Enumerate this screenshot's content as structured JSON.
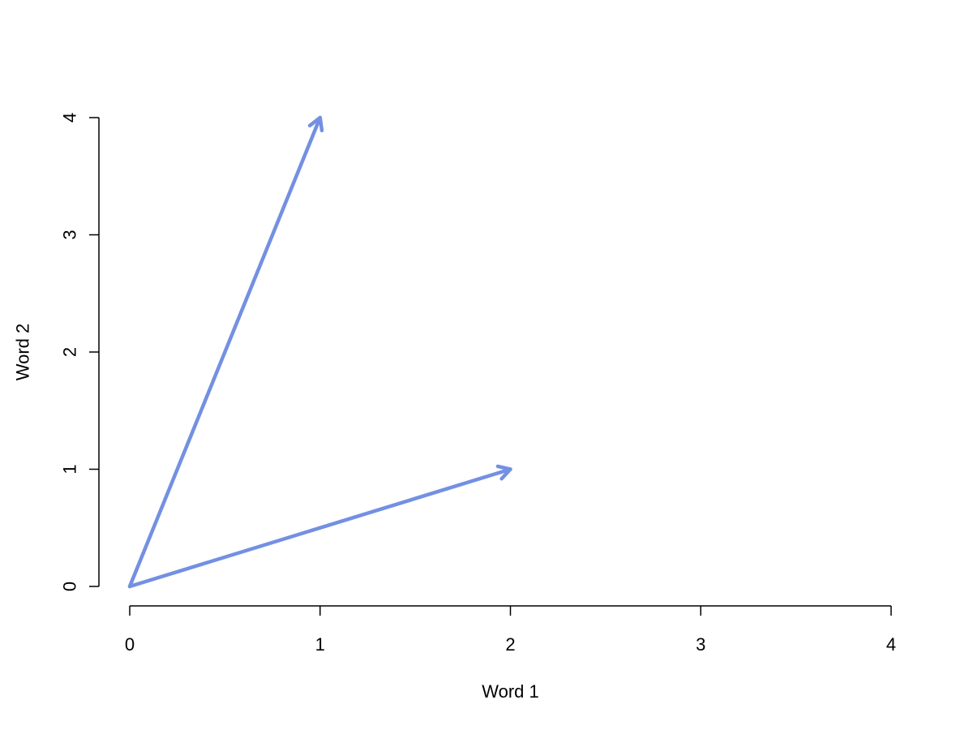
{
  "chart_data": {
    "type": "line",
    "subtype": "vector-arrows",
    "title": "",
    "xlabel": "Word 1",
    "ylabel": "Word 2",
    "xlim": [
      0,
      4
    ],
    "ylim": [
      0,
      4
    ],
    "x_ticks": [
      "0",
      "1",
      "2",
      "3",
      "4"
    ],
    "y_ticks": [
      "0",
      "1",
      "2",
      "3",
      "4"
    ],
    "grid": false,
    "legend": "none",
    "arrow_color": "#7390E2",
    "vectors": [
      {
        "x0": 0,
        "y0": 0,
        "x1": 1,
        "y1": 4
      },
      {
        "x0": 0,
        "y0": 0,
        "x1": 2,
        "y1": 1
      }
    ]
  }
}
